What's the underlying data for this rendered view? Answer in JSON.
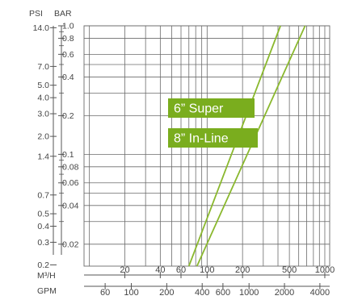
{
  "chart_data": {
    "type": "line",
    "title": "",
    "x_scale": "log",
    "y_scale": "log",
    "grid": true,
    "axes": {
      "left_outer_label": "PSI",
      "left_inner_label": "BAR",
      "bottom_top_label": "M³/H",
      "bottom_bottom_label": "GPM"
    },
    "x_range_m3h": [
      9,
      1100
    ],
    "y_range_bar": [
      0.0135,
      1.0
    ],
    "psi_ticks": [
      {
        "label": "14.0",
        "bar": 0.966
      },
      {
        "label": "7.0",
        "bar": 0.483
      },
      {
        "label": "5.0",
        "bar": 0.345
      },
      {
        "label": "4.0",
        "bar": 0.276
      },
      {
        "label": "3.0",
        "bar": 0.207
      },
      {
        "label": "2.0",
        "bar": 0.138
      },
      {
        "label": "1.4",
        "bar": 0.0966
      },
      {
        "label": "0.7",
        "bar": 0.0483
      },
      {
        "label": "0.5",
        "bar": 0.0345
      },
      {
        "label": "0.4",
        "bar": 0.0276
      },
      {
        "label": "0.3",
        "bar": 0.0207
      },
      {
        "label": "0.2",
        "bar": 0.0138
      }
    ],
    "bar_ticks": [
      {
        "label": "1.0",
        "bar": 1.0
      },
      {
        "label": "0.8",
        "bar": 0.8
      },
      {
        "label": "0.6",
        "bar": 0.6
      },
      {
        "label": "0.4",
        "bar": 0.4
      },
      {
        "label": "0.2",
        "bar": 0.2
      },
      {
        "label": "0.1",
        "bar": 0.1
      },
      {
        "label": "0.08",
        "bar": 0.08
      },
      {
        "label": "0.06",
        "bar": 0.06
      },
      {
        "label": "0.04",
        "bar": 0.04
      },
      {
        "label": "0.02",
        "bar": 0.02
      }
    ],
    "bar_minor_ticks": [
      0.9,
      0.7,
      0.5,
      0.3,
      0.09,
      0.07,
      0.05,
      0.03
    ],
    "m3h_ticks": [
      {
        "label": "20",
        "m3h": 20
      },
      {
        "label": "40",
        "m3h": 40
      },
      {
        "label": "60",
        "m3h": 60
      },
      {
        "label": "100",
        "m3h": 100
      },
      {
        "label": "200",
        "m3h": 200
      },
      {
        "label": "500",
        "m3h": 500
      },
      {
        "label": "1000",
        "m3h": 1000
      }
    ],
    "gpm_ticks": [
      {
        "label": "60",
        "m3h": 13.6
      },
      {
        "label": "100",
        "m3h": 22.7
      },
      {
        "label": "200",
        "m3h": 45.4
      },
      {
        "label": "400",
        "m3h": 90.8
      },
      {
        "label": "600",
        "m3h": 136.3
      },
      {
        "label": "1000",
        "m3h": 227.1
      },
      {
        "label": "2000",
        "m3h": 454.2
      },
      {
        "label": "4000",
        "m3h": 908.4
      }
    ],
    "vertical_gridlines_m3h": [
      10,
      20,
      30,
      40,
      50,
      60,
      70,
      80,
      90,
      100,
      200,
      300,
      400,
      500,
      600,
      700,
      800,
      900,
      1000
    ],
    "horizontal_gridlines_bar": [
      1.0,
      0.8,
      0.6,
      0.5,
      0.4,
      0.3,
      0.2,
      0.1,
      0.08,
      0.06,
      0.05,
      0.04,
      0.03,
      0.02
    ],
    "series": [
      {
        "name": "6” Super",
        "color": "#8ab82e",
        "points": [
          [
            70,
            0.0135
          ],
          [
            420,
            1.0
          ]
        ]
      },
      {
        "name": "8” In-Line",
        "color": "#8ab82e",
        "points": [
          [
            82,
            0.0135
          ],
          [
            680,
            1.0
          ]
        ]
      }
    ],
    "legend_color": "#7aad1e"
  }
}
